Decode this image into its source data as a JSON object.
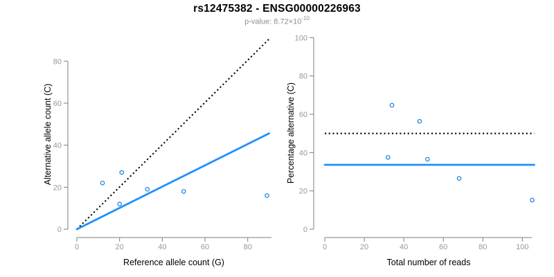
{
  "header": {
    "title": "rs12475382 - ENSG00000226963",
    "subtitle_base": "p-value: 8.72×10",
    "subtitle_exponent": "-10"
  },
  "colors": {
    "points": "#1c7ed6",
    "fit_line": "#1e90ff",
    "reference_line": "#000000",
    "axis_line": "#7d7d7d",
    "tick_label": "#979797",
    "axis_title": "#000000",
    "title": "#000000",
    "subtitle": "#8e8e8e"
  },
  "chart_data": [
    {
      "type": "scatter",
      "name": "allele-count-scatter",
      "xlabel": "Reference allele count (G)",
      "ylabel": "Alternative allele count (C)",
      "xlim": [
        0,
        91
      ],
      "ylim": [
        0,
        91
      ],
      "xticks": [
        0,
        20,
        40,
        60,
        80
      ],
      "yticks": [
        0,
        20,
        40,
        60,
        80
      ],
      "grid": false,
      "legend": null,
      "points": [
        {
          "x": 12,
          "y": 22
        },
        {
          "x": 21,
          "y": 27
        },
        {
          "x": 20,
          "y": 12
        },
        {
          "x": 33,
          "y": 19
        },
        {
          "x": 50,
          "y": 18
        },
        {
          "x": 89,
          "y": 16
        }
      ],
      "lines": [
        {
          "name": "identity-line",
          "style": "dotted",
          "color_key": "reference_line",
          "x1": 0,
          "y1": 0,
          "x2": 90,
          "y2": 90.5
        },
        {
          "name": "fit-line",
          "style": "solid",
          "color_key": "fit_line",
          "x1": 0,
          "y1": 0,
          "x2": 90,
          "y2": 45.6
        }
      ]
    },
    {
      "type": "scatter",
      "name": "percentage-scatter",
      "xlabel": "Total number of reads",
      "ylabel": "Percentage alternative (C)",
      "xlim": [
        0,
        106
      ],
      "ylim": [
        0,
        100
      ],
      "xticks": [
        0,
        20,
        40,
        60,
        80,
        100
      ],
      "yticks": [
        0,
        20,
        40,
        60,
        80,
        100
      ],
      "grid": false,
      "legend": null,
      "points": [
        {
          "x": 34,
          "y": 64.7
        },
        {
          "x": 48,
          "y": 56.3
        },
        {
          "x": 32,
          "y": 37.5
        },
        {
          "x": 52,
          "y": 36.5
        },
        {
          "x": 68,
          "y": 26.5
        },
        {
          "x": 105,
          "y": 15.2
        }
      ],
      "lines": [
        {
          "name": "expected-ratio-line",
          "style": "dotted",
          "color_key": "reference_line",
          "x1": 0,
          "y1": 50,
          "x2": 106,
          "y2": 50
        },
        {
          "name": "mean-ratio-line",
          "style": "solid",
          "color_key": "fit_line",
          "x1": 0,
          "y1": 33.6,
          "x2": 106,
          "y2": 33.6
        }
      ]
    }
  ]
}
